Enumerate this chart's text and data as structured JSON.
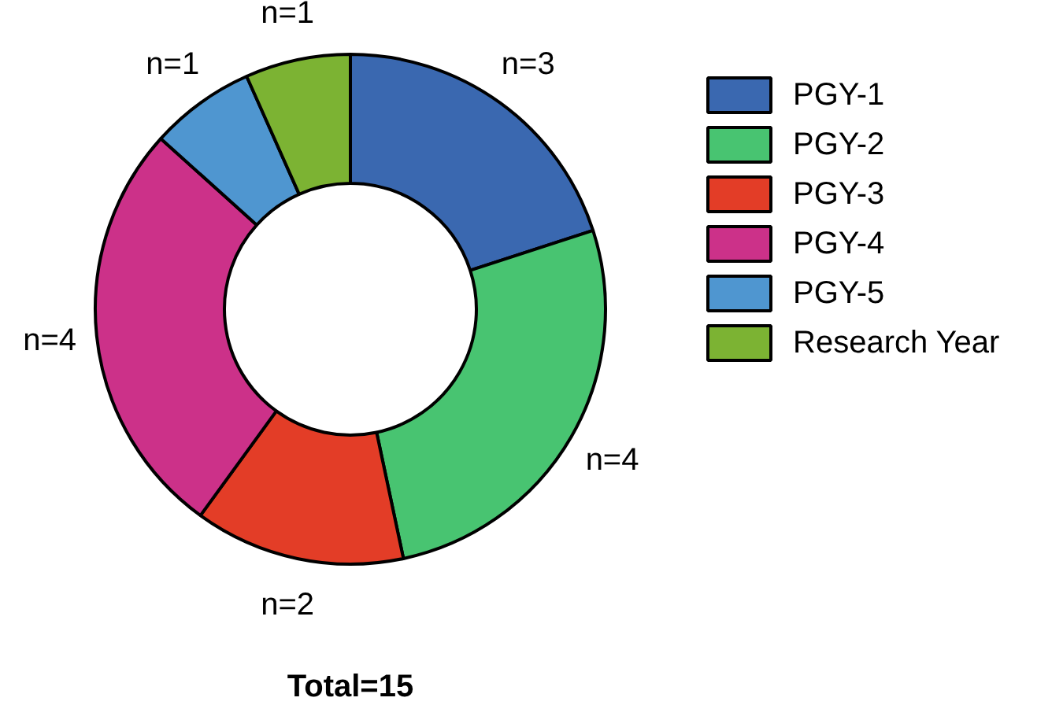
{
  "chart_data": {
    "type": "donut",
    "categories": [
      "PGY-1",
      "PGY-2",
      "PGY-3",
      "PGY-4",
      "PGY-5",
      "Research Year"
    ],
    "values": [
      3,
      4,
      2,
      4,
      1,
      1
    ],
    "colors": [
      "#3a68b0",
      "#48c471",
      "#e33d27",
      "#cc3189",
      "#4f96d0",
      "#7cb333"
    ],
    "value_labels": [
      "n=3",
      "n=4",
      "n=2",
      "n=4",
      "n=1",
      "n=1"
    ],
    "legend": "right",
    "annotations": [
      "Total=15"
    ]
  }
}
